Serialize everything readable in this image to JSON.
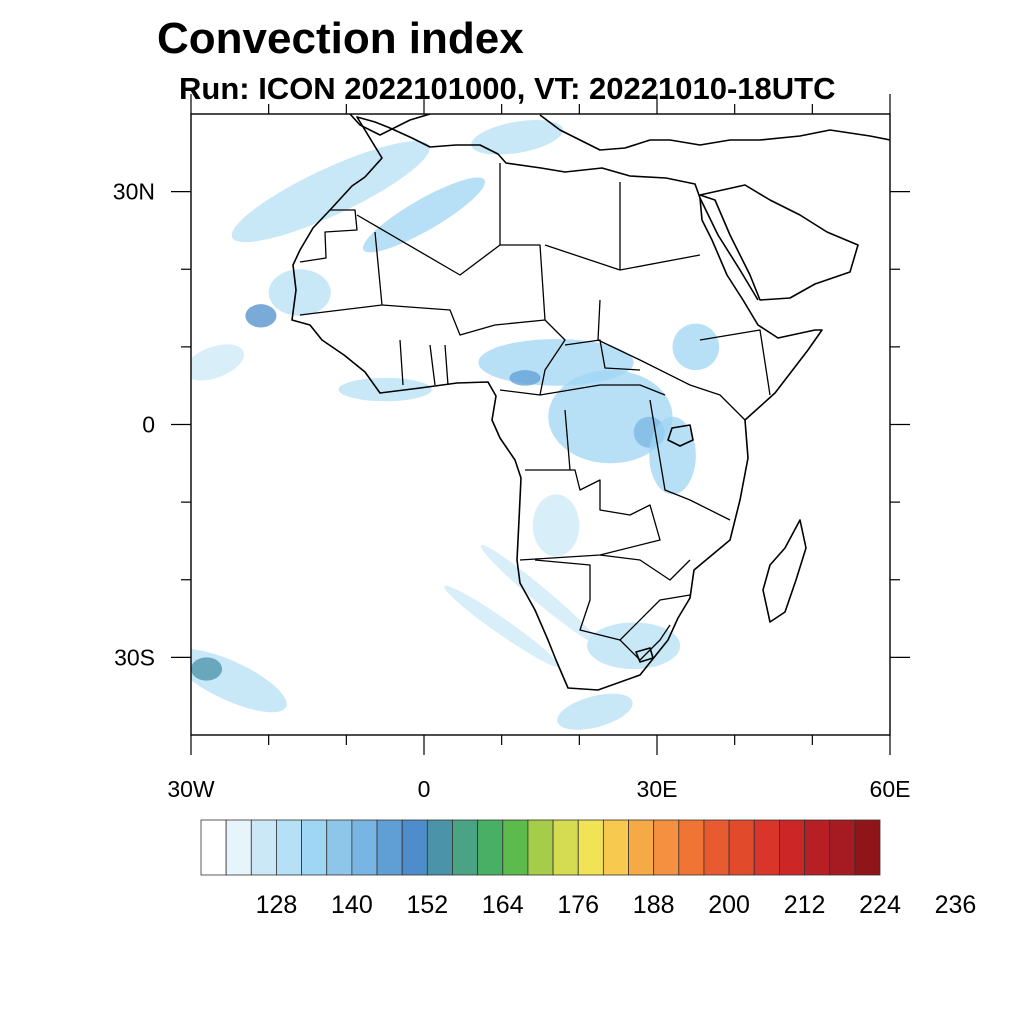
{
  "header": {
    "title": "Convection index",
    "subtitle": "Run: ICON 2022101000,  VT: 20221010-18UTC"
  },
  "map": {
    "projection": "cylindrical-equidistant",
    "lon_range": [
      -30,
      60
    ],
    "lat_range": [
      -40,
      40
    ],
    "lat_ticks": [
      {
        "value": 30,
        "label": "30N"
      },
      {
        "value": 0,
        "label": "0"
      },
      {
        "value": -30,
        "label": "30S"
      }
    ],
    "lon_ticks": [
      {
        "value": -30,
        "label": "30W"
      },
      {
        "value": 0,
        "label": "0"
      },
      {
        "value": 30,
        "label": "30E"
      },
      {
        "value": 60,
        "label": "60E"
      }
    ],
    "minor_tick_step_deg": 10,
    "coastline_color": "#000000",
    "convection_regions": [
      {
        "lon": -12,
        "lat": 30,
        "rx": 14,
        "ry": 3,
        "rot": -25,
        "level": 3
      },
      {
        "lon": 0,
        "lat": 27,
        "rx": 9,
        "ry": 2,
        "rot": -30,
        "level": 4
      },
      {
        "lon": 12,
        "lat": 37,
        "rx": 6,
        "ry": 2,
        "rot": -10,
        "level": 3
      },
      {
        "lon": -16,
        "lat": 17,
        "rx": 4,
        "ry": 3,
        "rot": 0,
        "level": 3
      },
      {
        "lon": -21,
        "lat": 14,
        "rx": 2,
        "ry": 1.5,
        "rot": 0,
        "level": 8
      },
      {
        "lon": -27,
        "lat": 8,
        "rx": 4,
        "ry": 2,
        "rot": -20,
        "level": 2
      },
      {
        "lon": -5,
        "lat": 4.5,
        "rx": 6,
        "ry": 1.5,
        "rot": 0,
        "level": 3
      },
      {
        "lon": 17,
        "lat": 8,
        "rx": 10,
        "ry": 3,
        "rot": 0,
        "level": 4
      },
      {
        "lon": 13,
        "lat": 6,
        "rx": 2,
        "ry": 1,
        "rot": 0,
        "level": 7
      },
      {
        "lon": 24,
        "lat": 1,
        "rx": 8,
        "ry": 6,
        "rot": 0,
        "level": 4
      },
      {
        "lon": 29,
        "lat": -1,
        "rx": 2,
        "ry": 2,
        "rot": 0,
        "level": 6
      },
      {
        "lon": 35,
        "lat": 10,
        "rx": 3,
        "ry": 3,
        "rot": 0,
        "level": 4
      },
      {
        "lon": 32,
        "lat": -4,
        "rx": 3,
        "ry": 5,
        "rot": 0,
        "level": 4
      },
      {
        "lon": 17,
        "lat": -13,
        "rx": 3,
        "ry": 4,
        "rot": 0,
        "level": 2
      },
      {
        "lon": 27,
        "lat": -28.5,
        "rx": 6,
        "ry": 3,
        "rot": 0,
        "level": 3
      },
      {
        "lon": 15,
        "lat": -22,
        "rx": 10,
        "ry": 1,
        "rot": 40,
        "level": 2
      },
      {
        "lon": 10,
        "lat": -26,
        "rx": 9,
        "ry": 1,
        "rot": 35,
        "level": 2
      },
      {
        "lon": 22,
        "lat": -37,
        "rx": 5,
        "ry": 2,
        "rot": -15,
        "level": 3
      },
      {
        "lon": -25,
        "lat": -33,
        "rx": 8,
        "ry": 2.5,
        "rot": 25,
        "level": 3
      },
      {
        "lon": -28,
        "lat": -31.5,
        "rx": 2,
        "ry": 1.5,
        "rot": 0,
        "level": 9
      }
    ]
  },
  "colorbar": {
    "colors": [
      "#ffffff",
      "#e8f4fc",
      "#cbe8f7",
      "#b5e0f6",
      "#9fd6f4",
      "#8ec6ea",
      "#78b5e3",
      "#5f9fd6",
      "#4e8dca",
      "#4a93a8",
      "#4aa383",
      "#48b064",
      "#5cbb4c",
      "#a6cd4a",
      "#d5dc52",
      "#f1e256",
      "#f8c94f",
      "#f5aa45",
      "#f59040",
      "#f07535",
      "#e85a30",
      "#e24a2c",
      "#d9352a",
      "#cc2627",
      "#b81f25",
      "#a61b22",
      "#8f1519"
    ],
    "labels": [
      "128",
      "140",
      "152",
      "164",
      "176",
      "188",
      "200",
      "212",
      "224",
      "236"
    ]
  }
}
